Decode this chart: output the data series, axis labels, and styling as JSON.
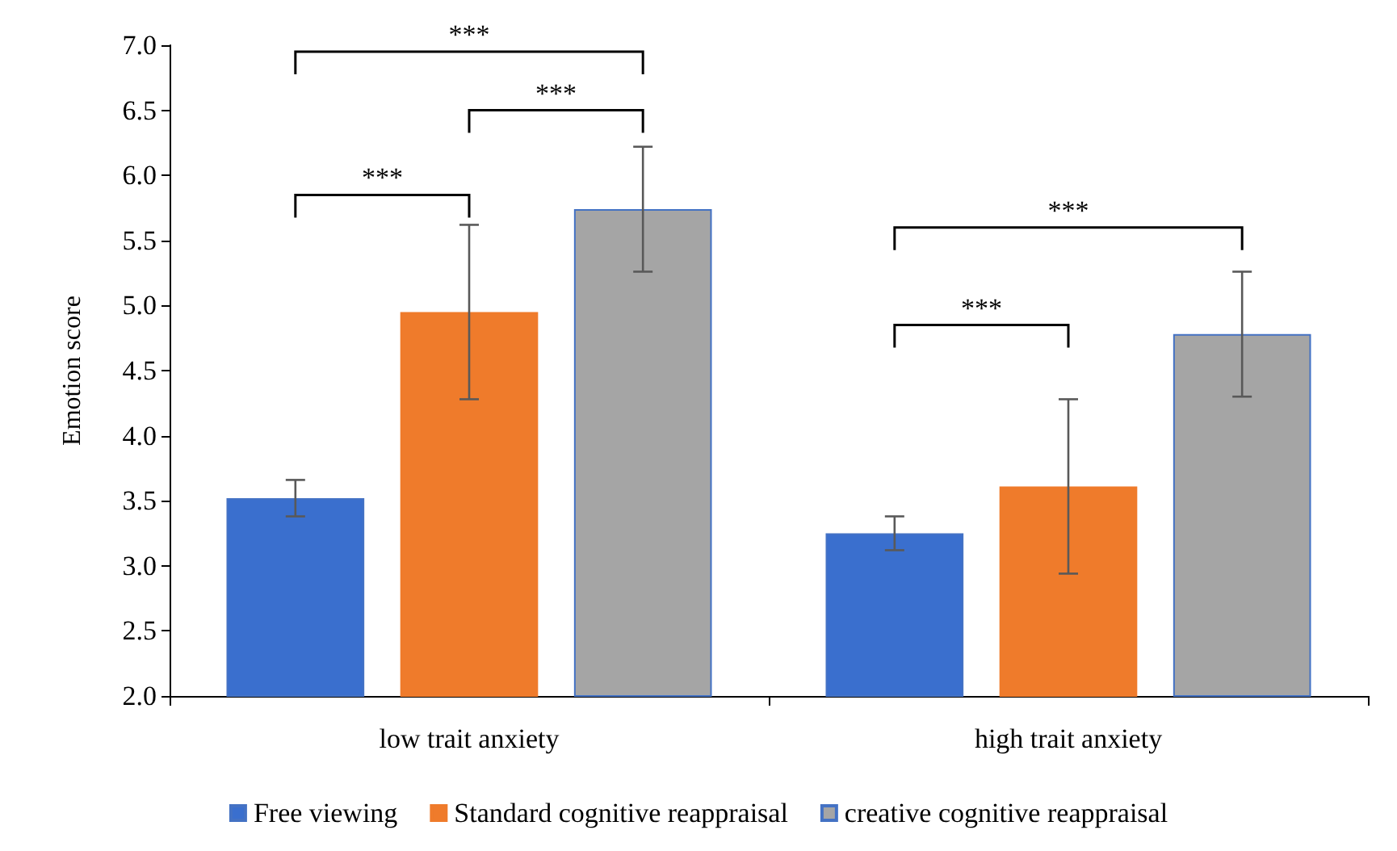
{
  "chart_data": {
    "type": "bar",
    "ylabel": "Emotion score",
    "categories": [
      "low trait anxiety",
      "high trait anxiety"
    ],
    "series": [
      {
        "name": "Free viewing",
        "color": "#3a6fce",
        "values": [
          3.52,
          3.25
        ],
        "errors": [
          0.14,
          0.13
        ]
      },
      {
        "name": "Standard cognitive reappraisal",
        "color": "#ef7b2b",
        "values": [
          4.95,
          3.61
        ],
        "errors": [
          0.67,
          0.67
        ]
      },
      {
        "name": "creative cognitive reappraisal",
        "color": "#a5a5a5",
        "values": [
          5.74,
          4.78
        ],
        "errors": [
          0.48,
          0.48
        ]
      }
    ],
    "ylim": [
      2,
      7
    ],
    "yticks": [
      {
        "value": 2,
        "label": "2.0"
      },
      2.5,
      {
        "value": 3,
        "label": "3.0"
      },
      3.5,
      {
        "value": 4,
        "label": "4.0"
      },
      4.5,
      {
        "value": 5,
        "label": "5.0"
      },
      5.5,
      {
        "value": 6,
        "label": "6.0"
      },
      6.5,
      {
        "value": 7,
        "label": "7.0"
      }
    ],
    "grid": false,
    "legend": "bottom",
    "annotations": [
      "***",
      "***",
      "***",
      "***",
      "***"
    ]
  }
}
